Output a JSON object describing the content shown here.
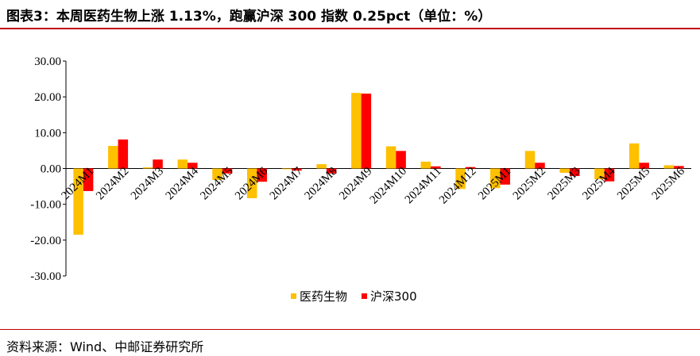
{
  "title": "图表3：本周医药生物上涨 1.13%，跑赢沪深 300 指数 0.25pct（单位：%）",
  "source": "资料来源：Wind、中邮证券研究所",
  "colors": {
    "series1": "#ffc000",
    "series2": "#ff0000",
    "rule": "#c00000"
  },
  "chart_data": {
    "type": "bar",
    "categories": [
      "2024M1",
      "2024M2",
      "2024M3",
      "2024M4",
      "2024M5",
      "2024M6",
      "2024M7",
      "2024M8",
      "2024M9",
      "2024M10",
      "2024M11",
      "2024M12",
      "2025M1",
      "2025M2",
      "2025M3",
      "2025M4",
      "2025M5",
      "2025M6"
    ],
    "series": [
      {
        "name": "医药生物",
        "values": [
          -18.5,
          6.3,
          0.3,
          2.5,
          -3.2,
          -8.3,
          -0.2,
          1.2,
          21.1,
          6.2,
          1.9,
          -5.7,
          -5.5,
          4.9,
          -1.2,
          -3.0,
          7.0,
          0.9
        ]
      },
      {
        "name": "沪深300",
        "values": [
          -6.3,
          8.1,
          2.5,
          1.6,
          -1.4,
          -3.7,
          -0.6,
          -1.4,
          20.9,
          4.9,
          0.6,
          0.4,
          -4.5,
          1.6,
          -2.1,
          -3.6,
          1.6,
          0.7
        ]
      }
    ],
    "yticks": [
      "30.00",
      "20.00",
      "10.00",
      "0.00",
      "-10.00",
      "-20.00",
      "-30.00"
    ],
    "ylim": [
      -30,
      30
    ],
    "grid": false,
    "legend_position": "bottom-center"
  }
}
